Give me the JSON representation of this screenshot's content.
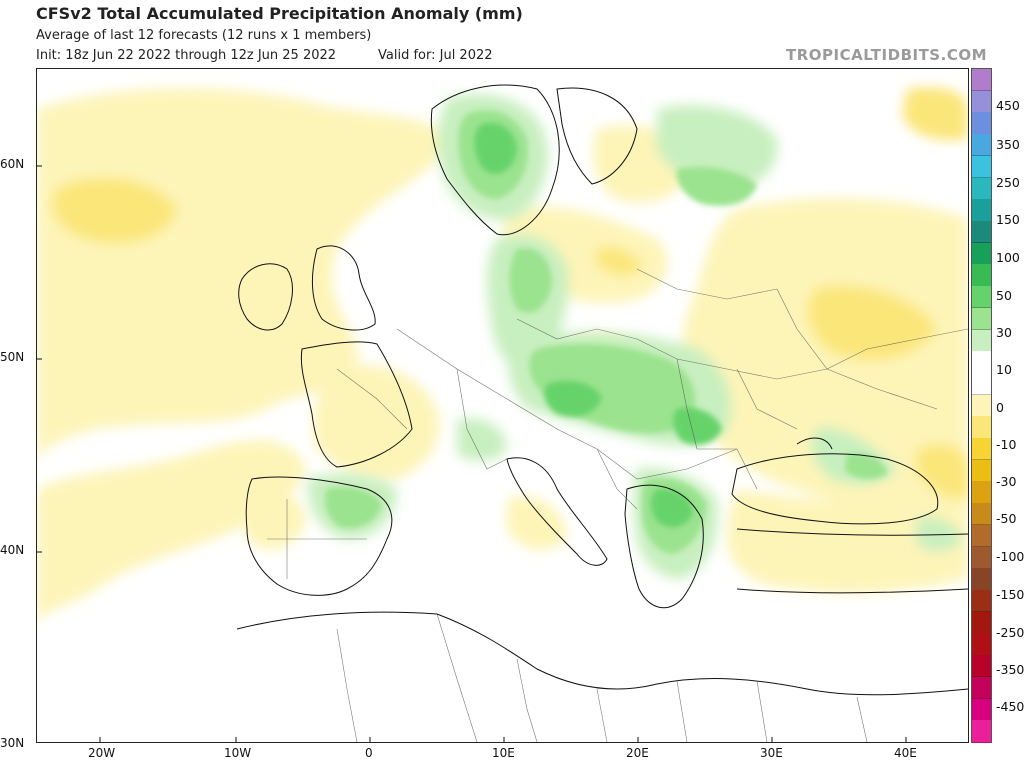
{
  "header": {
    "title": "CFSv2 Total Accumulated Precipitation Anomaly (mm)",
    "subtitle": "Average of last 12 forecasts (12 runs x 1 members)",
    "init": "Init: 18z Jun 22 2022 through 12z Jun 25 2022",
    "valid": "Valid for: Jul 2022",
    "site": "TROPICALTIDBITS.COM"
  },
  "axes": {
    "lat_labels": [
      "60N",
      "50N",
      "40N",
      "30N"
    ],
    "lon_labels": [
      "20W",
      "10W",
      "0",
      "10E",
      "20E",
      "30E",
      "40E"
    ]
  },
  "colorbar": {
    "labels": [
      "450",
      "350",
      "250",
      "150",
      "100",
      "50",
      "30",
      "10",
      "0",
      "-10",
      "-30",
      "-50",
      "-100",
      "-150",
      "-250",
      "-350",
      "-450"
    ],
    "colors": [
      "#b07ccb",
      "#9591d8",
      "#6c8fe0",
      "#4aa8e0",
      "#3bc2df",
      "#29b8bd",
      "#1a9f9a",
      "#1c8a7a",
      "#16a05a",
      "#38bb52",
      "#66d36a",
      "#9be38f",
      "#c8efbf",
      "#ffffff",
      "#ffffff",
      "#fdf4b8",
      "#fbe67a",
      "#f5d434",
      "#ecbd14",
      "#dca212",
      "#c98a1c",
      "#b36b2b",
      "#9c5a2e",
      "#874426",
      "#9a2f16",
      "#a2180f",
      "#b00f16",
      "#b7002a",
      "#c3005a",
      "#d8007e",
      "#ea1f9a"
    ]
  }
}
